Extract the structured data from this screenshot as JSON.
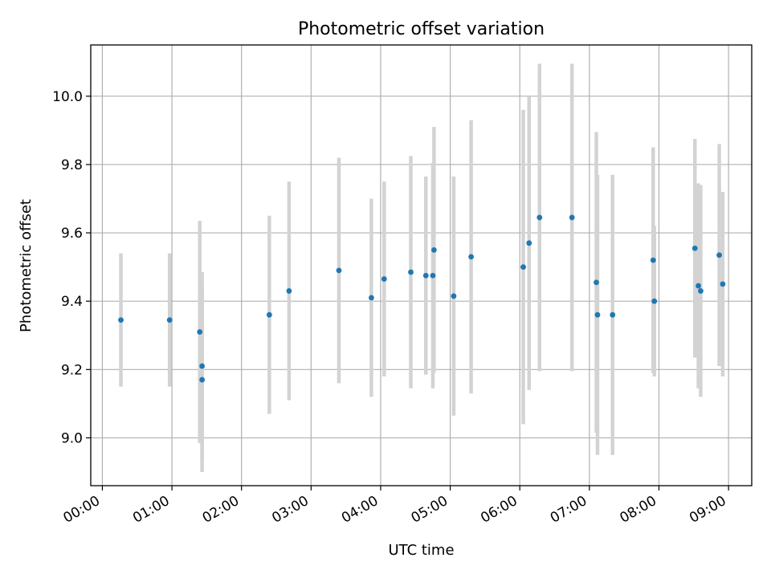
{
  "chart_data": {
    "type": "scatter",
    "title": "Photometric offset variation",
    "xlabel": "UTC time",
    "ylabel": "Photometric offset",
    "xlim": [
      "-00:10",
      "09:20"
    ],
    "ylim": [
      8.86,
      10.15
    ],
    "x_ticks": [
      "00:00",
      "01:00",
      "02:00",
      "03:00",
      "04:00",
      "05:00",
      "06:00",
      "07:00",
      "08:00",
      "09:00"
    ],
    "y_ticks": [
      9.0,
      9.2,
      9.4,
      9.6,
      9.8,
      10.0
    ],
    "y_tick_labels": [
      "9.0",
      "9.2",
      "9.4",
      "9.6",
      "9.8",
      "10.0"
    ],
    "grid": true,
    "colors": {
      "point": "#1f77b4",
      "errorbar": "#d3d3d3"
    },
    "series": [
      {
        "points": [
          {
            "x": "00:16",
            "y": 9.345,
            "err": 0.195
          },
          {
            "x": "00:58",
            "y": 9.345,
            "err": 0.195
          },
          {
            "x": "01:24",
            "y": 9.31,
            "err": 0.325
          },
          {
            "x": "01:26",
            "y": 9.21,
            "err": 0.275
          },
          {
            "x": "01:26",
            "y": 9.17,
            "err": 0.27
          },
          {
            "x": "02:24",
            "y": 9.36,
            "err": 0.29
          },
          {
            "x": "02:41",
            "y": 9.43,
            "err": 0.32
          },
          {
            "x": "03:24",
            "y": 9.49,
            "err": 0.33
          },
          {
            "x": "03:52",
            "y": 9.41,
            "err": 0.29
          },
          {
            "x": "04:03",
            "y": 9.465,
            "err": 0.285
          },
          {
            "x": "04:26",
            "y": 9.485,
            "err": 0.34
          },
          {
            "x": "04:39",
            "y": 9.475,
            "err": 0.29
          },
          {
            "x": "04:45",
            "y": 9.475,
            "err": 0.33
          },
          {
            "x": "04:46",
            "y": 9.55,
            "err": 0.36
          },
          {
            "x": "05:03",
            "y": 9.415,
            "err": 0.35
          },
          {
            "x": "05:18",
            "y": 9.53,
            "err": 0.4
          },
          {
            "x": "06:03",
            "y": 9.5,
            "err": 0.46
          },
          {
            "x": "06:08",
            "y": 9.57,
            "err": 0.43
          },
          {
            "x": "06:17",
            "y": 9.645,
            "err": 0.45
          },
          {
            "x": "06:45",
            "y": 9.645,
            "err": 0.45
          },
          {
            "x": "07:06",
            "y": 9.455,
            "err": 0.44
          },
          {
            "x": "07:07",
            "y": 9.36,
            "err": 0.41
          },
          {
            "x": "07:20",
            "y": 9.36,
            "err": 0.41
          },
          {
            "x": "07:55",
            "y": 9.52,
            "err": 0.33
          },
          {
            "x": "07:56",
            "y": 9.4,
            "err": 0.22
          },
          {
            "x": "08:31",
            "y": 9.555,
            "err": 0.32
          },
          {
            "x": "08:34",
            "y": 9.445,
            "err": 0.3
          },
          {
            "x": "08:36",
            "y": 9.43,
            "err": 0.31
          },
          {
            "x": "08:52",
            "y": 9.535,
            "err": 0.325
          },
          {
            "x": "08:55",
            "y": 9.45,
            "err": 0.27
          }
        ]
      }
    ]
  }
}
